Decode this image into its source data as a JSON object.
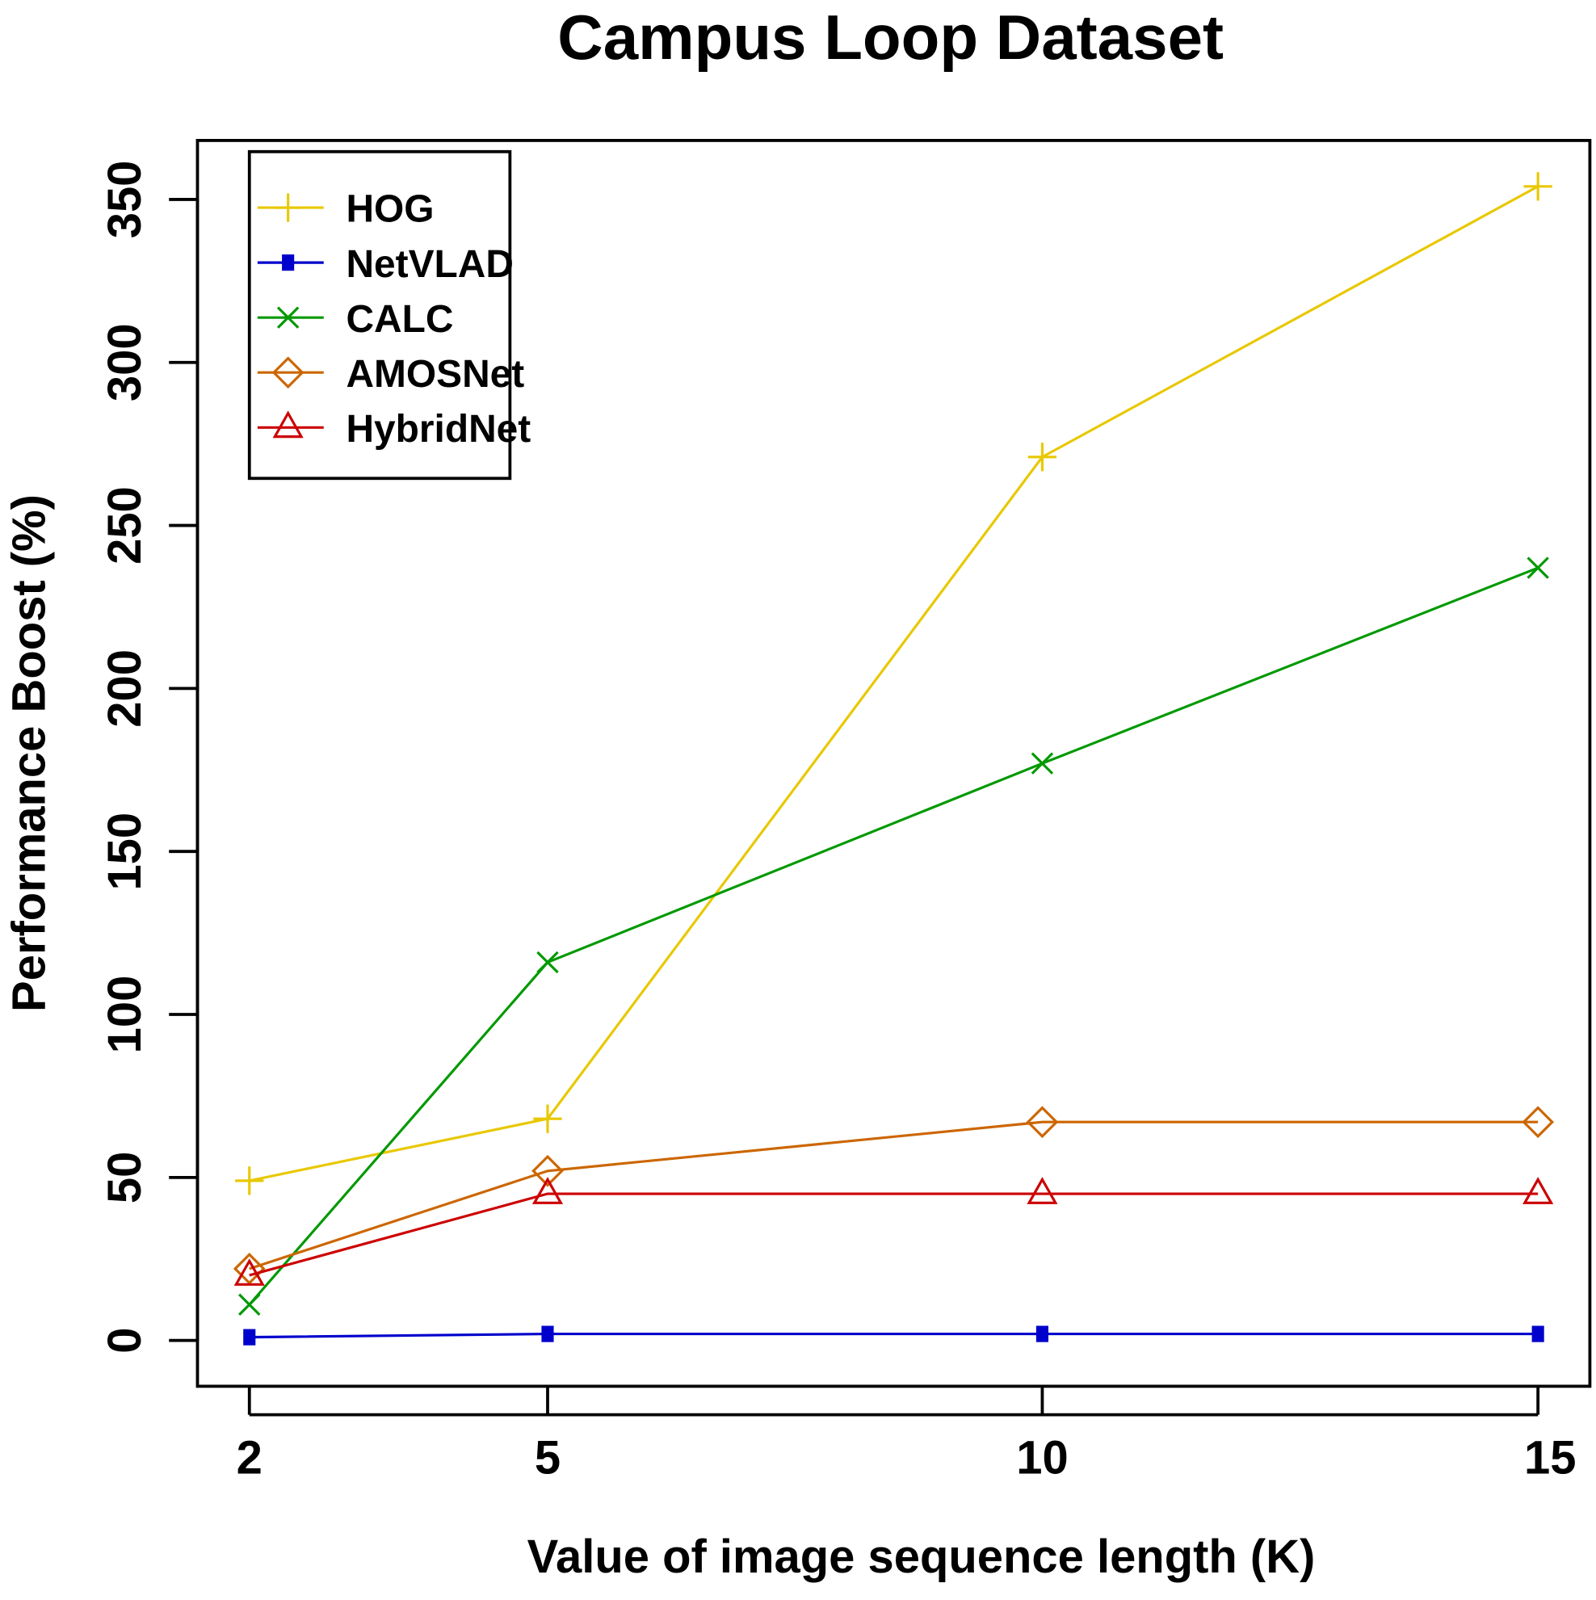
{
  "chart_data": {
    "type": "line",
    "title": "Campus Loop Dataset",
    "xlabel": "Value of image sequence length (K)",
    "ylabel": "Performance Boost (%)",
    "x": [
      2,
      5,
      10,
      15
    ],
    "x_ticks": [
      "2",
      "5",
      "10",
      "15"
    ],
    "y_ticks": [
      "0",
      "50",
      "100",
      "150",
      "200",
      "250",
      "300",
      "350"
    ],
    "ylim": [
      -14,
      364
    ],
    "grid": false,
    "legend_position": "top-left",
    "series": [
      {
        "name": "HOG",
        "color": "#E8C800",
        "marker": "plus",
        "values": [
          49,
          68,
          271,
          354
        ]
      },
      {
        "name": "NetVLAD",
        "color": "#0000CC",
        "marker": "square",
        "values": [
          1,
          2,
          2,
          2
        ]
      },
      {
        "name": "CALC",
        "color": "#009900",
        "marker": "x",
        "values": [
          11,
          116,
          177,
          237
        ]
      },
      {
        "name": "AMOSNet",
        "color": "#CC6600",
        "marker": "diamond",
        "values": [
          22,
          52,
          67,
          67
        ]
      },
      {
        "name": "HybridNet",
        "color": "#CC0000",
        "marker": "triangle",
        "values": [
          20,
          45,
          45,
          45
        ]
      }
    ]
  }
}
